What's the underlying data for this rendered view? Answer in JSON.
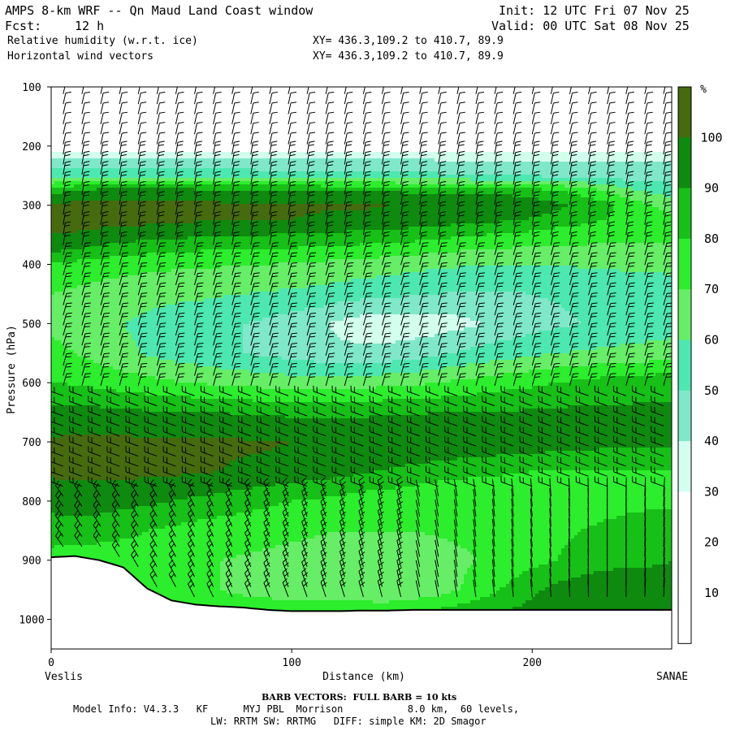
{
  "header": {
    "title": "AMPS 8-km WRF -- Qn Maud Land Coast window",
    "init": "Init: 12 UTC Fri 07 Nov 25",
    "fcst_label": "Fcst:",
    "fcst_value": "12 h",
    "valid": "Valid: 00 UTC Sat 08 Nov 25",
    "field1": "Relative humidity (w.r.t. ice)",
    "xy1": "XY= 436.3,109.2 to 410.7, 89.9",
    "field2": "Horizontal wind vectors",
    "xy2": "XY= 436.3,109.2 to 410.7, 89.9"
  },
  "axes": {
    "xlabel": "Distance (km)",
    "ylabel": "Pressure (hPa)",
    "left_end": "Veslis",
    "right_end": "SANAE",
    "xticks": [
      "0",
      "100",
      "200"
    ],
    "yticks": [
      "100",
      "200",
      "300",
      "400",
      "500",
      "600",
      "700",
      "800",
      "900",
      "1000"
    ]
  },
  "colorbar": {
    "unit": "%",
    "labels": [
      "100",
      "90",
      "80",
      "70",
      "60",
      "50",
      "40",
      "30",
      "20",
      "10"
    ]
  },
  "footer": {
    "barb": "BARB VECTORS:  FULL BARB = 10 kts",
    "model1": "Model Info: V4.3.3   KF      MYJ PBL  Morrison           8.0 km,  60 levels,",
    "model2": "LW: RRTM SW: RRTMG   DIFF: simple KM: 2D Smagor"
  },
  "chart_data": {
    "type": "heatmap",
    "title": "Relative humidity (w.r.t. ice) and horizontal wind vectors",
    "xlabel": "Distance (km)",
    "ylabel": "Pressure (hPa)",
    "xlim": [
      0,
      258
    ],
    "ylim": [
      1050,
      100
    ],
    "z_unit": "%",
    "z_levels": [
      0,
      10,
      20,
      30,
      40,
      50,
      60,
      70,
      80,
      90,
      100,
      110
    ],
    "level_colors": [
      "#ffffff",
      "#ffffff",
      "#ffffff",
      "#d2ffee",
      "#7fe8c8",
      "#4ce8b0",
      "#66ee66",
      "#2cee2c",
      "#16c016",
      "#0e8a0e",
      "#456b0e"
    ],
    "distance_km": [
      0,
      10,
      20,
      30,
      40,
      50,
      60,
      70,
      80,
      90,
      100,
      110,
      120,
      130,
      140,
      150,
      160,
      170,
      180,
      190,
      200,
      210,
      220,
      230,
      240,
      250,
      258
    ],
    "pressure_hpa": [
      100,
      150,
      200,
      225,
      250,
      275,
      300,
      325,
      350,
      375,
      400,
      450,
      500,
      550,
      600,
      650,
      700,
      750,
      800,
      850,
      900,
      950,
      1000
    ],
    "surface_pressure_hpa": [
      895,
      893,
      900,
      912,
      948,
      968,
      975,
      978,
      980,
      984,
      986,
      986,
      986,
      985,
      985,
      984,
      984,
      984,
      984,
      984,
      984,
      984,
      984,
      984,
      984,
      984,
      984
    ],
    "rh_ice": [
      [
        14,
        14,
        13,
        13,
        13,
        13,
        13,
        13,
        13,
        13,
        14,
        14,
        14,
        14,
        14,
        14,
        14,
        14,
        14,
        14,
        14,
        14,
        14,
        14,
        14,
        14,
        14
      ],
      [
        15,
        15,
        15,
        15,
        15,
        15,
        15,
        15,
        15,
        15,
        15,
        15,
        15,
        15,
        15,
        15,
        15,
        15,
        15,
        15,
        15,
        15,
        15,
        15,
        15,
        15,
        15
      ],
      [
        24,
        24,
        24,
        23,
        23,
        23,
        22,
        22,
        22,
        22,
        22,
        22,
        22,
        22,
        22,
        22,
        22,
        22,
        22,
        22,
        22,
        22,
        22,
        22,
        22,
        22,
        22
      ],
      [
        45,
        45,
        45,
        44,
        44,
        44,
        43,
        43,
        43,
        42,
        42,
        42,
        42,
        42,
        42,
        42,
        41,
        41,
        41,
        41,
        41,
        40,
        40,
        40,
        40,
        40,
        40
      ],
      [
        55,
        58,
        58,
        57,
        57,
        56,
        56,
        56,
        55,
        55,
        55,
        55,
        54,
        54,
        53,
        52,
        52,
        51,
        50,
        50,
        49,
        48,
        47,
        46,
        45,
        45,
        45
      ],
      [
        85,
        90,
        93,
        94,
        94,
        93,
        93,
        92,
        91,
        91,
        91,
        91,
        90,
        89,
        89,
        88,
        88,
        87,
        86,
        86,
        84,
        81,
        76,
        70,
        62,
        58,
        55
      ],
      [
        101,
        103,
        104,
        104,
        103,
        103,
        103,
        102,
        102,
        102,
        101,
        101,
        101,
        101,
        100,
        100,
        100,
        99,
        99,
        98,
        96,
        92,
        88,
        83,
        76,
        70,
        66
      ],
      [
        103,
        104,
        104,
        103,
        103,
        102,
        101,
        101,
        101,
        100,
        100,
        99,
        98,
        98,
        97,
        96,
        95,
        93,
        92,
        91,
        89,
        86,
        83,
        80,
        77,
        74,
        72
      ],
      [
        100,
        99,
        97,
        95,
        94,
        93,
        92,
        91,
        91,
        90,
        89,
        89,
        88,
        87,
        86,
        85,
        83,
        82,
        80,
        79,
        77,
        75,
        74,
        73,
        72,
        72,
        72
      ],
      [
        92,
        90,
        87,
        85,
        83,
        82,
        81,
        80,
        80,
        80,
        79,
        78,
        77,
        76,
        75,
        74,
        72,
        71,
        70,
        69,
        68,
        68,
        68,
        68,
        68,
        68,
        68
      ],
      [
        78,
        77,
        75,
        74,
        73,
        72,
        72,
        71,
        70,
        70,
        69,
        68,
        67,
        66,
        65,
        63,
        62,
        61,
        60,
        60,
        60,
        60,
        61,
        61,
        62,
        62,
        62
      ],
      [
        70,
        68,
        66,
        64,
        63,
        62,
        62,
        61,
        60,
        59,
        58,
        57,
        55,
        53,
        52,
        51,
        50,
        49,
        49,
        49,
        50,
        51,
        52,
        53,
        54,
        55,
        56
      ],
      [
        68,
        65,
        62,
        60,
        58,
        56,
        54,
        52,
        50,
        48,
        45,
        42,
        38,
        35,
        34,
        34,
        35,
        37,
        40,
        43,
        46,
        48,
        50,
        52,
        53,
        54,
        55
      ],
      [
        73,
        70,
        66,
        62,
        59,
        56,
        54,
        52,
        50,
        48,
        46,
        44,
        42,
        42,
        43,
        45,
        48,
        51,
        54,
        56,
        58,
        60,
        61,
        62,
        63,
        64,
        65
      ],
      [
        80,
        79,
        77,
        75,
        73,
        71,
        70,
        68,
        67,
        66,
        65,
        65,
        65,
        66,
        67,
        68,
        70,
        72,
        74,
        76,
        78,
        80,
        82,
        84,
        85,
        86,
        87
      ],
      [
        94,
        94,
        93,
        92,
        91,
        91,
        90,
        90,
        89,
        89,
        88,
        88,
        88,
        88,
        89,
        89,
        90,
        90,
        91,
        91,
        91,
        92,
        92,
        92,
        92,
        92,
        92
      ],
      [
        101,
        102,
        102,
        102,
        102,
        101,
        101,
        101,
        101,
        101,
        100,
        100,
        100,
        100,
        100,
        100,
        99,
        99,
        98,
        97,
        96,
        95,
        94,
        93,
        93,
        92,
        92
      ],
      [
        102,
        103,
        103,
        103,
        102,
        102,
        101,
        100,
        99,
        98,
        96,
        95,
        93,
        91,
        89,
        87,
        85,
        83,
        82,
        81,
        80,
        80,
        80,
        80,
        80,
        80,
        80
      ],
      [
        93,
        94,
        94,
        93,
        92,
        90,
        88,
        86,
        84,
        82,
        80,
        79,
        77,
        75,
        74,
        72,
        71,
        71,
        71,
        72,
        73,
        74,
        75,
        76,
        77,
        78,
        78
      ],
      [
        86,
        86,
        85,
        83,
        80,
        78,
        76,
        75,
        74,
        73,
        72,
        71,
        70,
        70,
        70,
        70,
        71,
        72,
        73,
        74,
        76,
        78,
        80,
        82,
        84,
        85,
        86
      ],
      [
        75,
        74,
        73,
        73,
        73,
        72,
        71,
        70,
        69,
        68,
        67,
        66,
        64,
        63,
        63,
        64,
        66,
        68,
        71,
        74,
        77,
        80,
        83,
        86,
        88,
        89,
        90
      ],
      [
        70,
        70,
        70,
        70,
        72,
        72,
        71,
        70,
        69,
        68,
        67,
        66,
        64,
        62,
        60,
        62,
        65,
        70,
        76,
        82,
        88,
        93,
        96,
        98,
        96,
        94,
        92
      ],
      [
        68,
        68,
        68,
        68,
        68,
        70,
        72,
        73,
        74,
        75,
        76,
        78,
        80,
        82,
        84,
        86,
        88,
        90,
        92,
        94,
        95,
        96,
        97,
        98,
        98,
        98,
        98
      ]
    ],
    "wind_barb_note": "FULL BARB = 10 kts",
    "colorbar_ticks": [
      100,
      90,
      80,
      70,
      60,
      50,
      40,
      30,
      20,
      10
    ]
  }
}
